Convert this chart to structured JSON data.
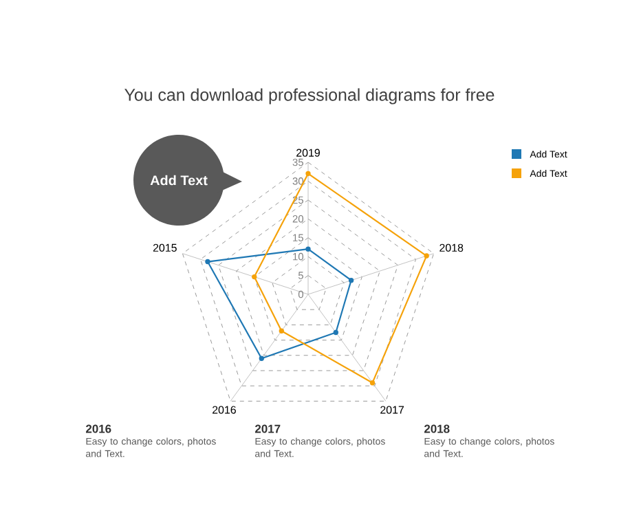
{
  "chart_data": {
    "type": "radar",
    "subtitle": "You can download professional diagrams for free",
    "categories": [
      "2019",
      "2018",
      "2017",
      "2016",
      "2015"
    ],
    "series": [
      {
        "name": "Add Text",
        "color": "#1f78b4",
        "values": [
          12,
          12,
          12.5,
          21,
          28
        ]
      },
      {
        "name": "Add Text",
        "color": "#f5a20a",
        "values": [
          32,
          33,
          29,
          12,
          15
        ]
      }
    ],
    "ylim": [
      0,
      35
    ],
    "yticks": [
      0,
      5,
      10,
      15,
      20,
      25,
      30,
      35
    ],
    "grid": true,
    "legend": "top right",
    "marker": "circle",
    "line_style": "solid",
    "annotations": [
      "Add Text",
      "2016",
      "Easy to change colors, photos and Text.",
      "2017",
      "Easy to change colors, photos and Text.",
      "2018",
      "Easy to change colors, photos and Text."
    ]
  }
}
